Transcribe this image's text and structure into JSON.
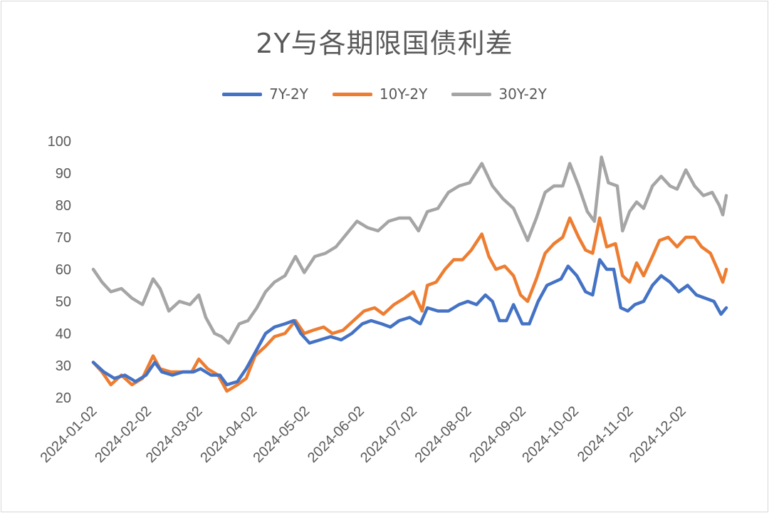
{
  "chart_data": {
    "type": "line",
    "title": "2Y与各期限国债利差",
    "xlabel": "",
    "ylabel": "",
    "ylim": [
      20,
      100
    ],
    "yticks": [
      20,
      30,
      40,
      50,
      60,
      70,
      80,
      90,
      100
    ],
    "x_tick_labels": [
      "2024-01-02",
      "2024-02-02",
      "2024-03-02",
      "2024-04-02",
      "2024-05-02",
      "2024-06-02",
      "2024-07-02",
      "2024-08-02",
      "2024-09-02",
      "2024-10-02",
      "2024-11-02",
      "2024-12-02"
    ],
    "grid": false,
    "legend": "top",
    "series": [
      {
        "name": "7Y-2Y",
        "color": "#4472C4",
        "points": [
          [
            "2024-01-02",
            31
          ],
          [
            "2024-01-08",
            28
          ],
          [
            "2024-01-14",
            26
          ],
          [
            "2024-01-20",
            27
          ],
          [
            "2024-01-26",
            25
          ],
          [
            "2024-02-01",
            27
          ],
          [
            "2024-02-06",
            31
          ],
          [
            "2024-02-10",
            28
          ],
          [
            "2024-02-16",
            27
          ],
          [
            "2024-02-22",
            28
          ],
          [
            "2024-02-28",
            28
          ],
          [
            "2024-03-03",
            29
          ],
          [
            "2024-03-09",
            27
          ],
          [
            "2024-03-14",
            27
          ],
          [
            "2024-03-18",
            24
          ],
          [
            "2024-03-24",
            25
          ],
          [
            "2024-03-29",
            29
          ],
          [
            "2024-04-04",
            35
          ],
          [
            "2024-04-09",
            40
          ],
          [
            "2024-04-14",
            42
          ],
          [
            "2024-04-20",
            43
          ],
          [
            "2024-04-25",
            44
          ],
          [
            "2024-04-29",
            40
          ],
          [
            "2024-05-04",
            37
          ],
          [
            "2024-05-10",
            38
          ],
          [
            "2024-05-16",
            39
          ],
          [
            "2024-05-22",
            38
          ],
          [
            "2024-05-28",
            40
          ],
          [
            "2024-06-03",
            43
          ],
          [
            "2024-06-08",
            44
          ],
          [
            "2024-06-14",
            43
          ],
          [
            "2024-06-19",
            42
          ],
          [
            "2024-06-24",
            44
          ],
          [
            "2024-06-30",
            45
          ],
          [
            "2024-07-06",
            43
          ],
          [
            "2024-07-10",
            48
          ],
          [
            "2024-07-16",
            47
          ],
          [
            "2024-07-22",
            47
          ],
          [
            "2024-07-28",
            49
          ],
          [
            "2024-08-02",
            50
          ],
          [
            "2024-08-07",
            49
          ],
          [
            "2024-08-12",
            52
          ],
          [
            "2024-08-16",
            50
          ],
          [
            "2024-08-20",
            44
          ],
          [
            "2024-08-24",
            44
          ],
          [
            "2024-08-28",
            49
          ],
          [
            "2024-09-02",
            43
          ],
          [
            "2024-09-06",
            43
          ],
          [
            "2024-09-11",
            50
          ],
          [
            "2024-09-16",
            55
          ],
          [
            "2024-09-20",
            56
          ],
          [
            "2024-09-24",
            57
          ],
          [
            "2024-09-28",
            61
          ],
          [
            "2024-10-03",
            58
          ],
          [
            "2024-10-08",
            53
          ],
          [
            "2024-10-12",
            52
          ],
          [
            "2024-10-16",
            63
          ],
          [
            "2024-10-20",
            60
          ],
          [
            "2024-10-24",
            60
          ],
          [
            "2024-10-28",
            48
          ],
          [
            "2024-11-01",
            47
          ],
          [
            "2024-11-05",
            49
          ],
          [
            "2024-11-10",
            50
          ],
          [
            "2024-11-15",
            55
          ],
          [
            "2024-11-20",
            58
          ],
          [
            "2024-11-25",
            56
          ],
          [
            "2024-11-30",
            53
          ],
          [
            "2024-12-05",
            55
          ],
          [
            "2024-12-10",
            52
          ],
          [
            "2024-12-15",
            51
          ],
          [
            "2024-12-20",
            50
          ],
          [
            "2024-12-24",
            46
          ],
          [
            "2024-12-27",
            48
          ]
        ]
      },
      {
        "name": "10Y-2Y",
        "color": "#ED7D31",
        "points": [
          [
            "2024-01-02",
            31
          ],
          [
            "2024-01-07",
            28
          ],
          [
            "2024-01-12",
            24
          ],
          [
            "2024-01-18",
            27
          ],
          [
            "2024-01-24",
            24
          ],
          [
            "2024-01-30",
            26
          ],
          [
            "2024-02-05",
            33
          ],
          [
            "2024-02-09",
            29
          ],
          [
            "2024-02-15",
            28
          ],
          [
            "2024-02-21",
            28
          ],
          [
            "2024-02-27",
            28
          ],
          [
            "2024-03-02",
            32
          ],
          [
            "2024-03-07",
            29
          ],
          [
            "2024-03-13",
            27
          ],
          [
            "2024-03-18",
            22
          ],
          [
            "2024-03-24",
            24
          ],
          [
            "2024-03-29",
            26
          ],
          [
            "2024-04-03",
            33
          ],
          [
            "2024-04-09",
            36
          ],
          [
            "2024-04-14",
            39
          ],
          [
            "2024-04-20",
            40
          ],
          [
            "2024-04-26",
            44
          ],
          [
            "2024-05-01",
            40
          ],
          [
            "2024-05-06",
            41
          ],
          [
            "2024-05-12",
            42
          ],
          [
            "2024-05-17",
            40
          ],
          [
            "2024-05-23",
            41
          ],
          [
            "2024-05-29",
            44
          ],
          [
            "2024-06-04",
            47
          ],
          [
            "2024-06-10",
            48
          ],
          [
            "2024-06-15",
            46
          ],
          [
            "2024-06-21",
            49
          ],
          [
            "2024-06-27",
            51
          ],
          [
            "2024-07-02",
            53
          ],
          [
            "2024-07-07",
            47
          ],
          [
            "2024-07-10",
            55
          ],
          [
            "2024-07-15",
            56
          ],
          [
            "2024-07-20",
            60
          ],
          [
            "2024-07-25",
            63
          ],
          [
            "2024-07-30",
            63
          ],
          [
            "2024-08-04",
            66
          ],
          [
            "2024-08-10",
            71
          ],
          [
            "2024-08-14",
            64
          ],
          [
            "2024-08-18",
            60
          ],
          [
            "2024-08-23",
            61
          ],
          [
            "2024-08-28",
            58
          ],
          [
            "2024-09-01",
            52
          ],
          [
            "2024-09-05",
            50
          ],
          [
            "2024-09-10",
            57
          ],
          [
            "2024-09-15",
            65
          ],
          [
            "2024-09-20",
            68
          ],
          [
            "2024-09-25",
            70
          ],
          [
            "2024-09-29",
            76
          ],
          [
            "2024-10-04",
            70
          ],
          [
            "2024-10-08",
            66
          ],
          [
            "2024-10-12",
            65
          ],
          [
            "2024-10-16",
            76
          ],
          [
            "2024-10-20",
            67
          ],
          [
            "2024-10-25",
            68
          ],
          [
            "2024-10-29",
            58
          ],
          [
            "2024-11-02",
            56
          ],
          [
            "2024-11-06",
            62
          ],
          [
            "2024-11-10",
            58
          ],
          [
            "2024-11-15",
            64
          ],
          [
            "2024-11-19",
            69
          ],
          [
            "2024-11-24",
            70
          ],
          [
            "2024-11-29",
            67
          ],
          [
            "2024-12-04",
            70
          ],
          [
            "2024-12-09",
            70
          ],
          [
            "2024-12-13",
            67
          ],
          [
            "2024-12-18",
            65
          ],
          [
            "2024-12-22",
            60
          ],
          [
            "2024-12-25",
            56
          ],
          [
            "2024-12-27",
            60
          ]
        ]
      },
      {
        "name": "30Y-2Y",
        "color": "#A5A5A5",
        "points": [
          [
            "2024-01-02",
            60
          ],
          [
            "2024-01-07",
            56
          ],
          [
            "2024-01-12",
            53
          ],
          [
            "2024-01-18",
            54
          ],
          [
            "2024-01-24",
            51
          ],
          [
            "2024-01-30",
            49
          ],
          [
            "2024-02-05",
            57
          ],
          [
            "2024-02-09",
            54
          ],
          [
            "2024-02-14",
            47
          ],
          [
            "2024-02-20",
            50
          ],
          [
            "2024-02-26",
            49
          ],
          [
            "2024-03-02",
            52
          ],
          [
            "2024-03-06",
            45
          ],
          [
            "2024-03-11",
            40
          ],
          [
            "2024-03-15",
            39
          ],
          [
            "2024-03-19",
            37
          ],
          [
            "2024-03-25",
            43
          ],
          [
            "2024-03-30",
            44
          ],
          [
            "2024-04-04",
            48
          ],
          [
            "2024-04-09",
            53
          ],
          [
            "2024-04-14",
            56
          ],
          [
            "2024-04-20",
            58
          ],
          [
            "2024-04-26",
            64
          ],
          [
            "2024-05-01",
            59
          ],
          [
            "2024-05-07",
            64
          ],
          [
            "2024-05-13",
            65
          ],
          [
            "2024-05-19",
            67
          ],
          [
            "2024-05-25",
            71
          ],
          [
            "2024-05-31",
            75
          ],
          [
            "2024-06-06",
            73
          ],
          [
            "2024-06-12",
            72
          ],
          [
            "2024-06-18",
            75
          ],
          [
            "2024-06-24",
            76
          ],
          [
            "2024-06-30",
            76
          ],
          [
            "2024-07-05",
            72
          ],
          [
            "2024-07-10",
            78
          ],
          [
            "2024-07-16",
            79
          ],
          [
            "2024-07-22",
            84
          ],
          [
            "2024-07-28",
            86
          ],
          [
            "2024-08-03",
            87
          ],
          [
            "2024-08-10",
            93
          ],
          [
            "2024-08-16",
            86
          ],
          [
            "2024-08-22",
            82
          ],
          [
            "2024-08-28",
            79
          ],
          [
            "2024-09-01",
            74
          ],
          [
            "2024-09-05",
            69
          ],
          [
            "2024-09-10",
            76
          ],
          [
            "2024-09-15",
            84
          ],
          [
            "2024-09-20",
            86
          ],
          [
            "2024-09-25",
            86
          ],
          [
            "2024-09-29",
            93
          ],
          [
            "2024-10-04",
            86
          ],
          [
            "2024-10-09",
            78
          ],
          [
            "2024-10-13",
            75
          ],
          [
            "2024-10-17",
            95
          ],
          [
            "2024-10-21",
            87
          ],
          [
            "2024-10-26",
            86
          ],
          [
            "2024-10-29",
            72
          ],
          [
            "2024-11-02",
            78
          ],
          [
            "2024-11-06",
            81
          ],
          [
            "2024-11-10",
            79
          ],
          [
            "2024-11-15",
            86
          ],
          [
            "2024-11-20",
            89
          ],
          [
            "2024-11-25",
            86
          ],
          [
            "2024-11-29",
            85
          ],
          [
            "2024-12-04",
            91
          ],
          [
            "2024-12-09",
            86
          ],
          [
            "2024-12-14",
            83
          ],
          [
            "2024-12-19",
            84
          ],
          [
            "2024-12-23",
            80
          ],
          [
            "2024-12-25",
            77
          ],
          [
            "2024-12-27",
            83
          ]
        ]
      }
    ]
  }
}
